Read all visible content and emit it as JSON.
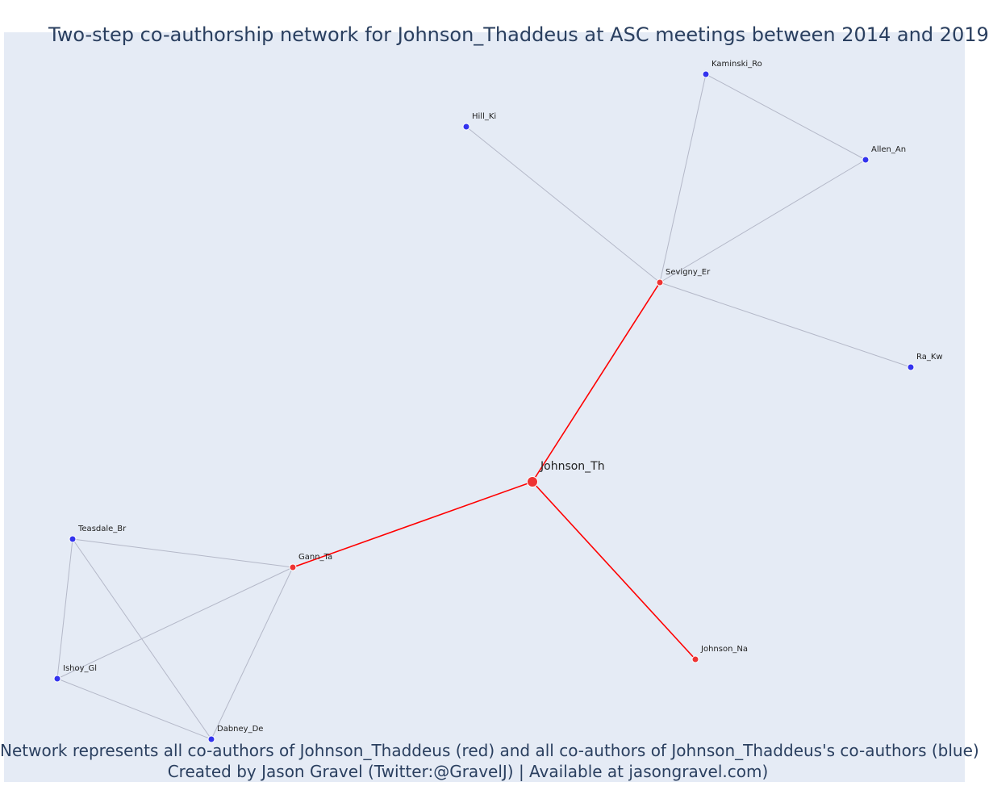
{
  "title": "Two-step co-authorship network for Johnson_Thaddeus at ASC meetings between 2014 and 2019",
  "caption_line1": "Network represents all co-authors of Johnson_Thaddeus (red) and all co-authors of Johnson_Thaddeus's co-authors (blue)",
  "caption_line2": "Created by Jason Gravel (Twitter:@GravelJ) | Available at jasongravel.com)",
  "colors": {
    "background": "#e5ebf5",
    "ego_edge": "#ff0000",
    "other_edge": "#b4b8c8",
    "red_node": "#ee3333",
    "blue_node": "#3333ee"
  },
  "nodes": [
    {
      "id": "Johnson_Th",
      "label": "Johnson_Th",
      "group": "ego"
    },
    {
      "id": "Sevigny_Er",
      "label": "Sevigny_Er",
      "group": "red"
    },
    {
      "id": "Gann_Ta",
      "label": "Gann_Ta",
      "group": "red"
    },
    {
      "id": "Johnson_Na",
      "label": "Johnson_Na",
      "group": "red"
    },
    {
      "id": "Kaminski_Ro",
      "label": "Kaminski_Ro",
      "group": "blue"
    },
    {
      "id": "Hill_Ki",
      "label": "Hill_Ki",
      "group": "blue"
    },
    {
      "id": "Allen_An",
      "label": "Allen_An",
      "group": "blue"
    },
    {
      "id": "Ra_Kw",
      "label": "Ra_Kw",
      "group": "blue"
    },
    {
      "id": "Teasdale_Br",
      "label": "Teasdale_Br",
      "group": "blue"
    },
    {
      "id": "Ishoy_Gl",
      "label": "Ishoy_Gl",
      "group": "blue"
    },
    {
      "id": "Dabney_De",
      "label": "Dabney_De",
      "group": "blue"
    }
  ],
  "edges": [
    {
      "source": "Johnson_Th",
      "target": "Sevigny_Er",
      "type": "ego"
    },
    {
      "source": "Johnson_Th",
      "target": "Gann_Ta",
      "type": "ego"
    },
    {
      "source": "Johnson_Th",
      "target": "Johnson_Na",
      "type": "ego"
    },
    {
      "source": "Sevigny_Er",
      "target": "Hill_Ki",
      "type": "other"
    },
    {
      "source": "Sevigny_Er",
      "target": "Kaminski_Ro",
      "type": "other"
    },
    {
      "source": "Sevigny_Er",
      "target": "Allen_An",
      "type": "other"
    },
    {
      "source": "Sevigny_Er",
      "target": "Ra_Kw",
      "type": "other"
    },
    {
      "source": "Kaminski_Ro",
      "target": "Allen_An",
      "type": "other"
    },
    {
      "source": "Gann_Ta",
      "target": "Teasdale_Br",
      "type": "other"
    },
    {
      "source": "Gann_Ta",
      "target": "Ishoy_Gl",
      "type": "other"
    },
    {
      "source": "Gann_Ta",
      "target": "Dabney_De",
      "type": "other"
    },
    {
      "source": "Teasdale_Br",
      "target": "Ishoy_Gl",
      "type": "other"
    },
    {
      "source": "Teasdale_Br",
      "target": "Dabney_De",
      "type": "other"
    },
    {
      "source": "Ishoy_Gl",
      "target": "Dabney_De",
      "type": "other"
    }
  ]
}
